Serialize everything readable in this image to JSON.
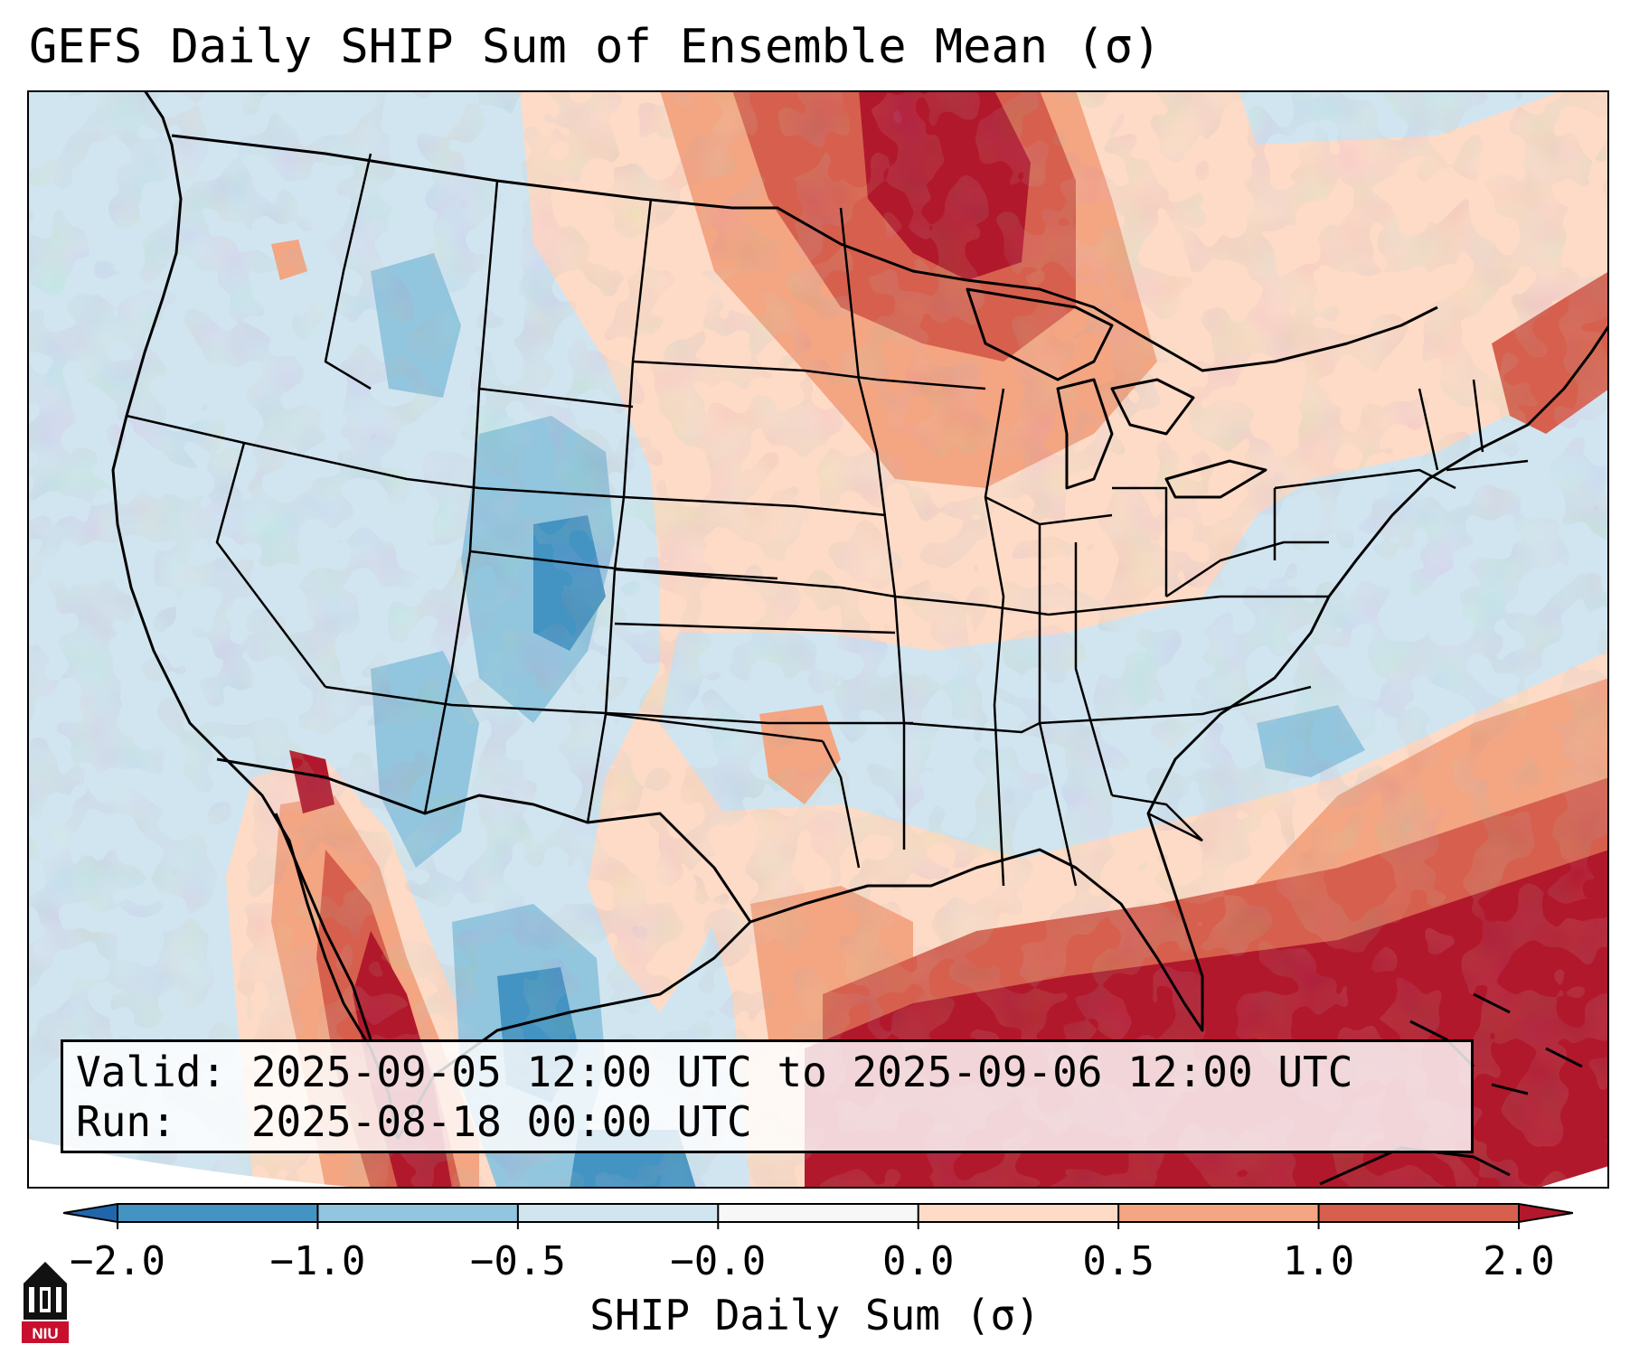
{
  "title": "GEFS Daily SHIP Sum of Ensemble Mean (σ)",
  "info": {
    "valid_line": "Valid: 2025-09-05 12:00 UTC to 2025-09-06 12:00 UTC",
    "run_line": "Run:   2025-08-18 00:00 UTC"
  },
  "colorbar": {
    "label": "SHIP Daily Sum (σ)",
    "ticks": [
      "−2.0",
      "−1.0",
      "−0.5",
      "−0.0",
      "0.0",
      "0.5",
      "1.0",
      "2.0"
    ],
    "bins": [
      {
        "range": "< -2.0",
        "color": "#2166ac"
      },
      {
        "range": "-2.0 to -1.0",
        "color": "#4393c3"
      },
      {
        "range": "-1.0 to -0.5",
        "color": "#92c5de"
      },
      {
        "range": "-0.5 to -0.0",
        "color": "#d1e5f0"
      },
      {
        "range": "-0.0 to 0.0",
        "color": "#f7f7f7"
      },
      {
        "range": "0.0 to 0.5",
        "color": "#fddbc7"
      },
      {
        "range": "0.5 to 1.0",
        "color": "#f4a582"
      },
      {
        "range": "1.0 to 2.0",
        "color": "#d6604d"
      },
      {
        "range": "> 2.0",
        "color": "#b2182b"
      }
    ]
  },
  "logo": {
    "text": "NIU",
    "icon": "university-building-icon"
  },
  "map": {
    "projection": "Lambert conformal, continental United States",
    "background_color": "#d1e5f0",
    "features": [
      "coastlines",
      "state borders",
      "country borders",
      "Great Lakes"
    ]
  }
}
